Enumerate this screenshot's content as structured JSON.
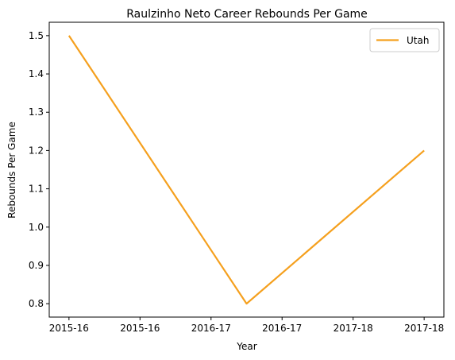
{
  "chart_data": {
    "type": "line",
    "title": "Raulzinho Neto Career Rebounds Per Game",
    "xlabel": "Year",
    "ylabel": "Rebounds Per Game",
    "x_ticks": [
      "2015-16",
      "2015-16",
      "2016-17",
      "2016-17",
      "2017-18",
      "2017-18"
    ],
    "x": [
      "2015-16",
      "2016-17",
      "2017-18"
    ],
    "series": [
      {
        "name": "Utah",
        "color": "#f5a01e",
        "values": [
          1.5,
          0.8,
          1.2
        ]
      }
    ],
    "y_ticks": [
      0.8,
      0.9,
      1.0,
      1.1,
      1.2,
      1.3,
      1.4,
      1.5
    ],
    "ylim": [
      0.765,
      1.535
    ],
    "grid": false,
    "legend_position": "top-right"
  }
}
